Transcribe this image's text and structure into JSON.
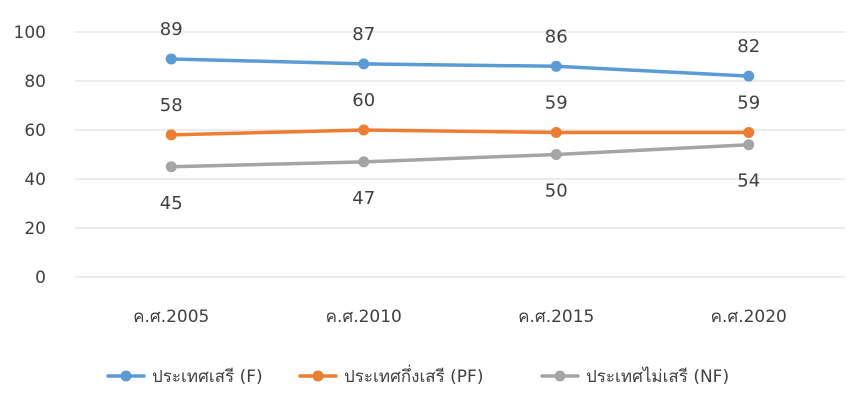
{
  "chart_data": {
    "type": "line",
    "categories": [
      "ค.ศ.2005",
      "ค.ศ.2010",
      "ค.ศ.2015",
      "ค.ศ.2020"
    ],
    "series": [
      {
        "name": "ประเทศเสรี (F)",
        "values": [
          89,
          87,
          86,
          82
        ],
        "color": "#5B9BD5",
        "label_position": "above"
      },
      {
        "name": "ประเทศกึ่งเสรี (PF)",
        "values": [
          58,
          60,
          59,
          59
        ],
        "color": "#ED7D31",
        "label_position": "above"
      },
      {
        "name": "ประเทศไม่เสรี (NF)",
        "values": [
          45,
          47,
          50,
          54
        ],
        "color": "#A5A5A5",
        "label_position": "below"
      }
    ],
    "ylim": [
      0,
      100
    ],
    "yticks": [
      0,
      20,
      40,
      60,
      80,
      100
    ],
    "grid": true,
    "legend": "bottom",
    "title": "",
    "xlabel": "",
    "ylabel": ""
  }
}
